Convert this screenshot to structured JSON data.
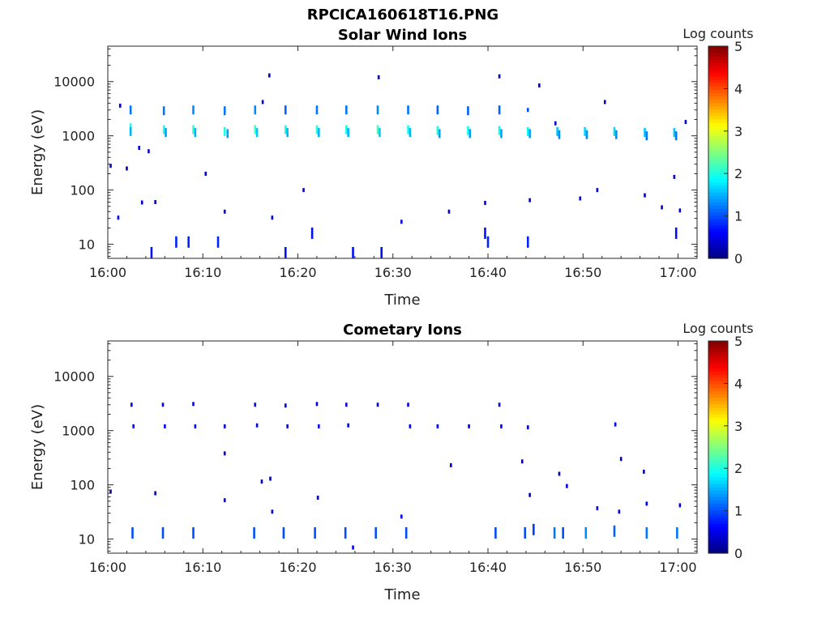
{
  "figure_title": "RPCICA160618T16.PNG",
  "colormap_name": "jet",
  "chart_data": [
    {
      "type": "heatmap",
      "title": "Solar Wind Ions",
      "xlabel": "Time",
      "ylabel": "Energy (eV)",
      "x_ticks": [
        "16:00",
        "16:10",
        "16:20",
        "16:30",
        "16:40",
        "16:50",
        "17:00"
      ],
      "xlim": [
        "16:00",
        "17:02"
      ],
      "y_ticks": [
        "10",
        "100",
        "1000",
        "10000"
      ],
      "y_scale": "log",
      "ylim": [
        5.5,
        45000
      ],
      "colorbar_label": "Log counts",
      "colorbar_ticks": [
        "0",
        "1",
        "2",
        "3",
        "4",
        "5"
      ],
      "clim": [
        0,
        5
      ],
      "pixels": [
        {
          "t": "16:02.4",
          "e": 3000,
          "v": 1.2
        },
        {
          "t": "16:02.4",
          "e": 1400,
          "v": 2.0
        },
        {
          "t": "16:02.4",
          "e": 1200,
          "v": 1.5
        },
        {
          "t": "16:05.9",
          "e": 2900,
          "v": 1.2
        },
        {
          "t": "16:05.9",
          "e": 1300,
          "v": 2.0
        },
        {
          "t": "16:06.1",
          "e": 1150,
          "v": 1.4
        },
        {
          "t": "16:09.0",
          "e": 3000,
          "v": 1.3
        },
        {
          "t": "16:09.0",
          "e": 1300,
          "v": 2.1
        },
        {
          "t": "16:09.2",
          "e": 1150,
          "v": 1.5
        },
        {
          "t": "16:12.3",
          "e": 2900,
          "v": 1.2
        },
        {
          "t": "16:12.3",
          "e": 1200,
          "v": 2.0
        },
        {
          "t": "16:12.6",
          "e": 1100,
          "v": 1.4
        },
        {
          "t": "16:15.5",
          "e": 3000,
          "v": 1.3
        },
        {
          "t": "16:15.5",
          "e": 1300,
          "v": 2.2
        },
        {
          "t": "16:15.7",
          "e": 1150,
          "v": 1.6
        },
        {
          "t": "16:18.7",
          "e": 3000,
          "v": 1.1
        },
        {
          "t": "16:18.7",
          "e": 1300,
          "v": 2.0
        },
        {
          "t": "16:18.9",
          "e": 1150,
          "v": 1.5
        },
        {
          "t": "16:22.0",
          "e": 3000,
          "v": 1.2
        },
        {
          "t": "16:22.0",
          "e": 1300,
          "v": 2.1
        },
        {
          "t": "16:22.2",
          "e": 1150,
          "v": 1.5
        },
        {
          "t": "16:25.1",
          "e": 3000,
          "v": 1.2
        },
        {
          "t": "16:25.1",
          "e": 1300,
          "v": 2.0
        },
        {
          "t": "16:25.3",
          "e": 1150,
          "v": 1.5
        },
        {
          "t": "16:28.4",
          "e": 3000,
          "v": 1.3
        },
        {
          "t": "16:28.4",
          "e": 1300,
          "v": 2.2
        },
        {
          "t": "16:28.6",
          "e": 1150,
          "v": 1.6
        },
        {
          "t": "16:31.6",
          "e": 3000,
          "v": 1.2
        },
        {
          "t": "16:31.6",
          "e": 1300,
          "v": 2.0
        },
        {
          "t": "16:31.8",
          "e": 1150,
          "v": 1.5
        },
        {
          "t": "16:34.7",
          "e": 3000,
          "v": 1.1
        },
        {
          "t": "16:34.7",
          "e": 1250,
          "v": 2.0
        },
        {
          "t": "16:34.9",
          "e": 1100,
          "v": 1.4
        },
        {
          "t": "16:37.9",
          "e": 2900,
          "v": 1.1
        },
        {
          "t": "16:37.9",
          "e": 1250,
          "v": 2.0
        },
        {
          "t": "16:38.1",
          "e": 1100,
          "v": 1.4
        },
        {
          "t": "16:41.2",
          "e": 3000,
          "v": 1.1
        },
        {
          "t": "16:41.2",
          "e": 1250,
          "v": 1.9
        },
        {
          "t": "16:41.4",
          "e": 1100,
          "v": 1.4
        },
        {
          "t": "16:44.2",
          "e": 3000,
          "v": 1.0
        },
        {
          "t": "16:44.2",
          "e": 1200,
          "v": 1.9
        },
        {
          "t": "16:44.4",
          "e": 1100,
          "v": 1.4
        },
        {
          "t": "16:47.3",
          "e": 1200,
          "v": 1.6
        },
        {
          "t": "16:47.5",
          "e": 1050,
          "v": 1.3
        },
        {
          "t": "16:50.2",
          "e": 1200,
          "v": 1.7
        },
        {
          "t": "16:50.4",
          "e": 1050,
          "v": 1.3
        },
        {
          "t": "16:53.3",
          "e": 1200,
          "v": 1.7
        },
        {
          "t": "16:53.5",
          "e": 1050,
          "v": 1.3
        },
        {
          "t": "16:56.5",
          "e": 1150,
          "v": 1.6
        },
        {
          "t": "16:56.7",
          "e": 1000,
          "v": 1.2
        },
        {
          "t": "16:59.6",
          "e": 1150,
          "v": 1.6
        },
        {
          "t": "16:59.8",
          "e": 1000,
          "v": 1.2
        },
        {
          "t": "16:00.3",
          "e": 280,
          "v": 0.4
        },
        {
          "t": "16:01.3",
          "e": 3600,
          "v": 0.4
        },
        {
          "t": "16:01.1",
          "e": 31,
          "v": 0.6
        },
        {
          "t": "16:02.0",
          "e": 250,
          "v": 0.3
        },
        {
          "t": "16:03.3",
          "e": 600,
          "v": 0.4
        },
        {
          "t": "16:03.6",
          "e": 59,
          "v": 0.4
        },
        {
          "t": "16:04.3",
          "e": 520,
          "v": 0.3
        },
        {
          "t": "16:04.6",
          "e": 7,
          "v": 0.7
        },
        {
          "t": "16:05.0",
          "e": 60,
          "v": 0.4
        },
        {
          "t": "16:07.2",
          "e": 11,
          "v": 0.8
        },
        {
          "t": "16:08.5",
          "e": 11,
          "v": 0.8
        },
        {
          "t": "16:11.6",
          "e": 11,
          "v": 0.8
        },
        {
          "t": "16:10.3",
          "e": 200,
          "v": 0.3
        },
        {
          "t": "16:12.3",
          "e": 40,
          "v": 0.4
        },
        {
          "t": "16:16.3",
          "e": 4200,
          "v": 0.4
        },
        {
          "t": "16:17.0",
          "e": 13000,
          "v": 0.3
        },
        {
          "t": "16:17.3",
          "e": 31,
          "v": 0.5
        },
        {
          "t": "16:18.7",
          "e": 7,
          "v": 0.7
        },
        {
          "t": "16:20.6",
          "e": 100,
          "v": 0.4
        },
        {
          "t": "16:21.5",
          "e": 16,
          "v": 0.7
        },
        {
          "t": "16:25.8",
          "e": 7,
          "v": 0.7
        },
        {
          "t": "16:28.5",
          "e": 12000,
          "v": 0.3
        },
        {
          "t": "16:28.8",
          "e": 7,
          "v": 0.7
        },
        {
          "t": "16:30.9",
          "e": 26,
          "v": 0.6
        },
        {
          "t": "16:35.9",
          "e": 40,
          "v": 0.5
        },
        {
          "t": "16:39.7",
          "e": 16,
          "v": 0.7
        },
        {
          "t": "16:40.0",
          "e": 11,
          "v": 0.8
        },
        {
          "t": "16:39.7",
          "e": 58,
          "v": 0.4
        },
        {
          "t": "16:41.2",
          "e": 12500,
          "v": 0.3
        },
        {
          "t": "16:44.2",
          "e": 11,
          "v": 0.8
        },
        {
          "t": "16:44.4",
          "e": 65,
          "v": 0.4
        },
        {
          "t": "16:45.4",
          "e": 8500,
          "v": 0.3
        },
        {
          "t": "16:49.7",
          "e": 70,
          "v": 0.4
        },
        {
          "t": "16:51.5",
          "e": 100,
          "v": 0.4
        },
        {
          "t": "16:52.3",
          "e": 4200,
          "v": 0.3
        },
        {
          "t": "16:56.5",
          "e": 80,
          "v": 0.4
        },
        {
          "t": "16:58.3",
          "e": 48,
          "v": 0.4
        },
        {
          "t": "16:59.8",
          "e": 16,
          "v": 0.7
        },
        {
          "t": "17:00.2",
          "e": 42,
          "v": 0.4
        },
        {
          "t": "17:00.8",
          "e": 1800,
          "v": 0.4
        },
        {
          "t": "16:59.6",
          "e": 175,
          "v": 0.4
        },
        {
          "t": "16:47.1",
          "e": 1700,
          "v": 0.3
        }
      ]
    },
    {
      "type": "heatmap",
      "title": "Cometary Ions",
      "xlabel": "Time",
      "ylabel": "Energy (eV)",
      "x_ticks": [
        "16:00",
        "16:10",
        "16:20",
        "16:30",
        "16:40",
        "16:50",
        "17:00"
      ],
      "xlim": [
        "16:00",
        "17:02"
      ],
      "y_ticks": [
        "10",
        "100",
        "1000",
        "10000"
      ],
      "y_scale": "log",
      "ylim": [
        5.5,
        45000
      ],
      "colorbar_label": "Log counts",
      "colorbar_ticks": [
        "0",
        "1",
        "2",
        "3",
        "4",
        "5"
      ],
      "clim": [
        0,
        5
      ],
      "pixels": [
        {
          "t": "16:02.5",
          "e": 3000,
          "v": 0.5
        },
        {
          "t": "16:02.7",
          "e": 1200,
          "v": 0.6
        },
        {
          "t": "16:05.8",
          "e": 3000,
          "v": 0.5
        },
        {
          "t": "16:06.0",
          "e": 1200,
          "v": 0.6
        },
        {
          "t": "16:09.0",
          "e": 3100,
          "v": 0.6
        },
        {
          "t": "16:09.2",
          "e": 1200,
          "v": 0.6
        },
        {
          "t": "16:12.3",
          "e": 1200,
          "v": 0.5
        },
        {
          "t": "16:15.5",
          "e": 3000,
          "v": 0.5
        },
        {
          "t": "16:15.7",
          "e": 1250,
          "v": 0.6
        },
        {
          "t": "16:18.7",
          "e": 2900,
          "v": 0.5
        },
        {
          "t": "16:18.9",
          "e": 1200,
          "v": 0.6
        },
        {
          "t": "16:22.0",
          "e": 3100,
          "v": 0.6
        },
        {
          "t": "16:22.2",
          "e": 1200,
          "v": 0.6
        },
        {
          "t": "16:25.1",
          "e": 3000,
          "v": 0.5
        },
        {
          "t": "16:25.3",
          "e": 1250,
          "v": 0.6
        },
        {
          "t": "16:28.4",
          "e": 3000,
          "v": 0.6
        },
        {
          "t": "16:31.6",
          "e": 3000,
          "v": 0.5
        },
        {
          "t": "16:31.8",
          "e": 1200,
          "v": 0.6
        },
        {
          "t": "16:34.7",
          "e": 1200,
          "v": 0.6
        },
        {
          "t": "16:38.0",
          "e": 1200,
          "v": 0.5
        },
        {
          "t": "16:41.2",
          "e": 3000,
          "v": 0.5
        },
        {
          "t": "16:41.4",
          "e": 1200,
          "v": 0.6
        },
        {
          "t": "16:44.2",
          "e": 1150,
          "v": 0.5
        },
        {
          "t": "16:53.4",
          "e": 1300,
          "v": 0.5
        },
        {
          "t": "16:02.6",
          "e": 13,
          "v": 1.0
        },
        {
          "t": "16:05.8",
          "e": 13,
          "v": 1.0
        },
        {
          "t": "16:09.0",
          "e": 13,
          "v": 1.0
        },
        {
          "t": "16:15.4",
          "e": 13,
          "v": 1.0
        },
        {
          "t": "16:18.5",
          "e": 13,
          "v": 1.0
        },
        {
          "t": "16:21.8",
          "e": 13,
          "v": 1.0
        },
        {
          "t": "16:25.0",
          "e": 13,
          "v": 1.0
        },
        {
          "t": "16:28.2",
          "e": 13,
          "v": 1.0
        },
        {
          "t": "16:31.4",
          "e": 13,
          "v": 1.0
        },
        {
          "t": "16:40.8",
          "e": 13,
          "v": 1.0
        },
        {
          "t": "16:43.9",
          "e": 13,
          "v": 1.0
        },
        {
          "t": "16:44.8",
          "e": 15,
          "v": 0.9
        },
        {
          "t": "16:47.0",
          "e": 13,
          "v": 1.2
        },
        {
          "t": "16:47.9",
          "e": 13,
          "v": 1.0
        },
        {
          "t": "16:50.3",
          "e": 13,
          "v": 1.3
        },
        {
          "t": "16:53.3",
          "e": 14,
          "v": 1.1
        },
        {
          "t": "16:56.7",
          "e": 13,
          "v": 1.2
        },
        {
          "t": "16:59.9",
          "e": 13,
          "v": 1.2
        },
        {
          "t": "16:00.3",
          "e": 75,
          "v": 0.3
        },
        {
          "t": "16:05.0",
          "e": 70,
          "v": 0.3
        },
        {
          "t": "16:12.3",
          "e": 380,
          "v": 0.3
        },
        {
          "t": "16:12.3",
          "e": 52,
          "v": 0.4
        },
        {
          "t": "16:16.2",
          "e": 115,
          "v": 0.3
        },
        {
          "t": "16:17.1",
          "e": 130,
          "v": 0.3
        },
        {
          "t": "16:17.3",
          "e": 32,
          "v": 0.5
        },
        {
          "t": "16:22.1",
          "e": 58,
          "v": 0.4
        },
        {
          "t": "16:25.8",
          "e": 7,
          "v": 0.6
        },
        {
          "t": "16:30.9",
          "e": 26,
          "v": 0.6
        },
        {
          "t": "16:36.1",
          "e": 230,
          "v": 0.4
        },
        {
          "t": "16:43.6",
          "e": 270,
          "v": 0.4
        },
        {
          "t": "16:44.4",
          "e": 65,
          "v": 0.3
        },
        {
          "t": "16:47.5",
          "e": 160,
          "v": 0.3
        },
        {
          "t": "16:48.3",
          "e": 95,
          "v": 0.4
        },
        {
          "t": "16:51.5",
          "e": 37,
          "v": 0.5
        },
        {
          "t": "16:53.8",
          "e": 32,
          "v": 0.5
        },
        {
          "t": "16:54.0",
          "e": 300,
          "v": 0.3
        },
        {
          "t": "16:56.4",
          "e": 175,
          "v": 0.4
        },
        {
          "t": "16:56.7",
          "e": 45,
          "v": 0.6
        },
        {
          "t": "17:00.2",
          "e": 42,
          "v": 0.5
        }
      ]
    }
  ]
}
